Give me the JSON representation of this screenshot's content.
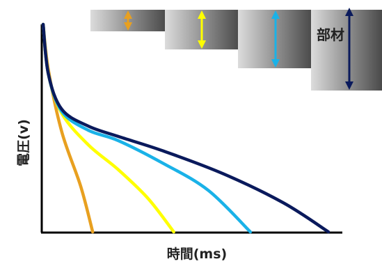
{
  "chart_data": {
    "type": "line",
    "title": "",
    "xlabel": "時間(ms)",
    "ylabel": "電圧(v)",
    "grid": false,
    "legend": "none",
    "series": [
      {
        "color": "#e8a020",
        "points": [
          [
            0,
            100
          ],
          [
            0.7,
            78
          ],
          [
            2.5,
            48
          ],
          [
            5,
            22
          ],
          [
            6.6,
            0
          ]
        ]
      },
      {
        "color": "#ffff00",
        "points": [
          [
            0,
            100
          ],
          [
            0.7,
            76
          ],
          [
            2.5,
            57
          ],
          [
            6,
            42
          ],
          [
            10,
            30
          ],
          [
            14,
            16
          ],
          [
            17.4,
            0
          ]
        ]
      },
      {
        "color": "#1ab2e8",
        "points": [
          [
            0,
            100
          ],
          [
            0.7,
            76
          ],
          [
            2.5,
            58
          ],
          [
            6,
            49
          ],
          [
            10,
            44
          ],
          [
            16,
            33
          ],
          [
            22,
            20
          ],
          [
            27.6,
            0
          ]
        ]
      },
      {
        "color": "#0a1a5c",
        "points": [
          [
            0,
            100
          ],
          [
            0.7,
            76
          ],
          [
            2.5,
            59
          ],
          [
            6,
            51
          ],
          [
            10,
            46
          ],
          [
            16,
            39
          ],
          [
            24,
            28
          ],
          [
            32,
            14
          ],
          [
            38,
            0
          ]
        ]
      }
    ]
  },
  "thickness_legend": {
    "label": "部材",
    "colors": [
      "#e8a020",
      "#ffff00",
      "#1ab2e8",
      "#0a1a5c"
    ],
    "levels": [
      1,
      2,
      3,
      4
    ]
  }
}
